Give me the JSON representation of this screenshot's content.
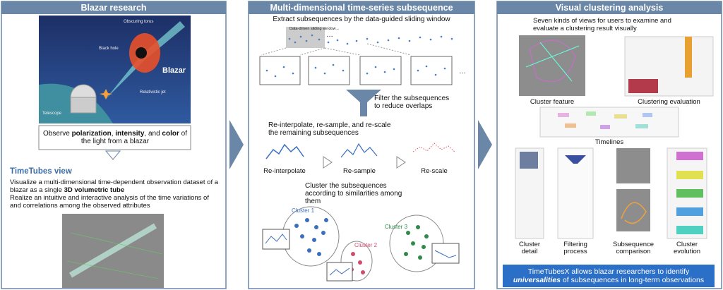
{
  "blazar_research": {
    "title": "Blazar research",
    "illustration_labels": [
      "Obscuring torus",
      "Black hole",
      "Blazar",
      "Relativistic jet",
      "Telescope"
    ],
    "callout": [
      "Observe ",
      "polarization",
      ", ",
      "intensity",
      ", and ",
      "color",
      " of the light from a blazar"
    ],
    "subtitle": "TimeTubes view",
    "description": [
      [
        "Visualize a multi-dimensional time-dependent observation dataset of a blazar as a single ",
        "3D volumetric tube"
      ],
      [
        "Realize an intuitive and interactive analysis of the time variations of and correlations among the observed attributes"
      ]
    ]
  },
  "subsequence_clustering": {
    "title": "Multi-dimensional time-series subsequence clustering",
    "extract": "Extract subsequences by the data-guided sliding window",
    "window_label": "Data-driven sliding window→",
    "ellipsis": [
      "…",
      "…"
    ],
    "filter": "Filter the subsequences to reduce overlaps",
    "normalize": "Re-interpolate, re-sample, and re-scale the remaining subsequences",
    "methods": [
      "Re-interpolate",
      "Re-sample",
      "Re-scale"
    ],
    "cluster": "Cluster the subsequences according to similarities among them",
    "clusters": [
      "Cluster 1",
      "Cluster 2",
      "Cluster 3"
    ]
  },
  "visual_analysis": {
    "title": "Visual clustering analysis",
    "intro": "Seven kinds of views for users to examine and evaluate a clustering result visually",
    "views": [
      "Cluster feature",
      "Clustering evaluation",
      "Timelines",
      "Cluster detail",
      "Filtering process",
      "Subsequence comparison",
      "Cluster evolution"
    ],
    "summary": [
      "TimeTubesX allows blazar researchers to identify ",
      "universalities",
      " of subsequences in long-term observations"
    ]
  }
}
